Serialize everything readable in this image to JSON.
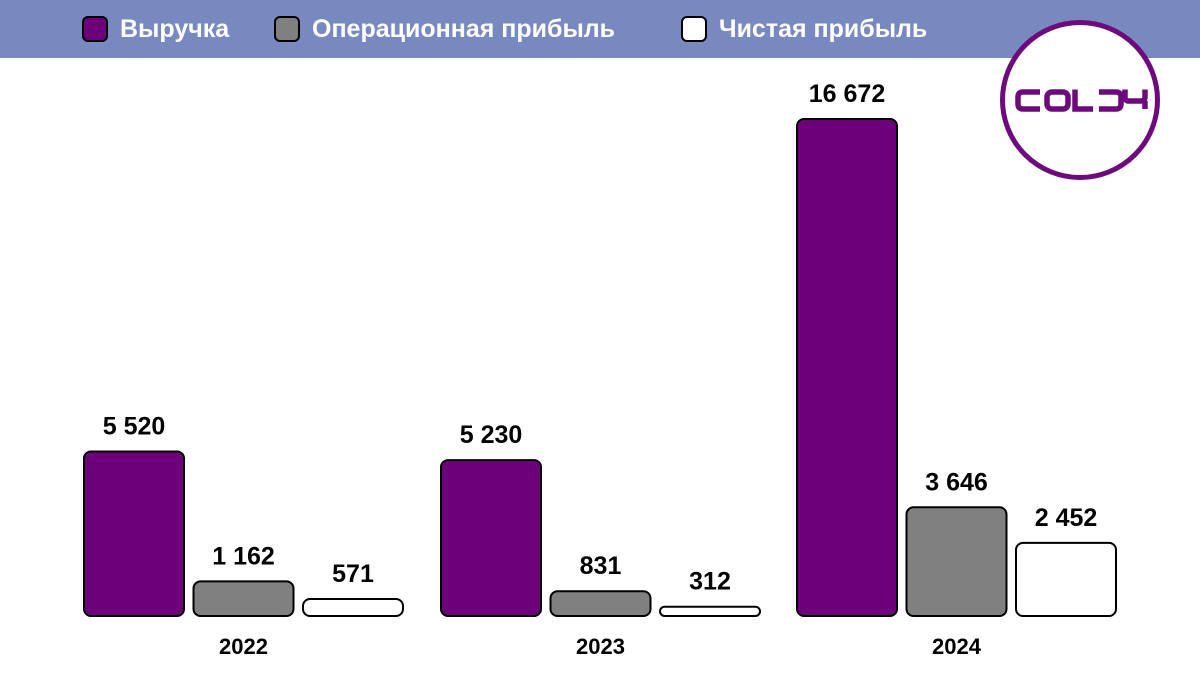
{
  "chart_data": {
    "type": "bar",
    "categories": [
      "2022",
      "2023",
      "2024"
    ],
    "series": [
      {
        "name": "Выручка",
        "values": [
          5520,
          5230,
          16672
        ],
        "labels": [
          "5 520",
          "5 230",
          "16 672"
        ],
        "color": "#6d007a"
      },
      {
        "name": "Операционная прибыль",
        "values": [
          1162,
          831,
          3646
        ],
        "labels": [
          "1 162",
          "831",
          "3 646"
        ],
        "color": "#808080"
      },
      {
        "name": "Чистая прибыль",
        "values": [
          571,
          312,
          2452
        ],
        "labels": [
          "571",
          "312",
          "2 452"
        ],
        "color": "#ffffff"
      }
    ],
    "legend_position": "top",
    "grid": false,
    "axes_visible": false,
    "ylim": [
      0,
      16672
    ]
  },
  "logo": {
    "text": "COLDY",
    "color": "#6d0b7c"
  },
  "colors": {
    "header": "#7789bf"
  }
}
